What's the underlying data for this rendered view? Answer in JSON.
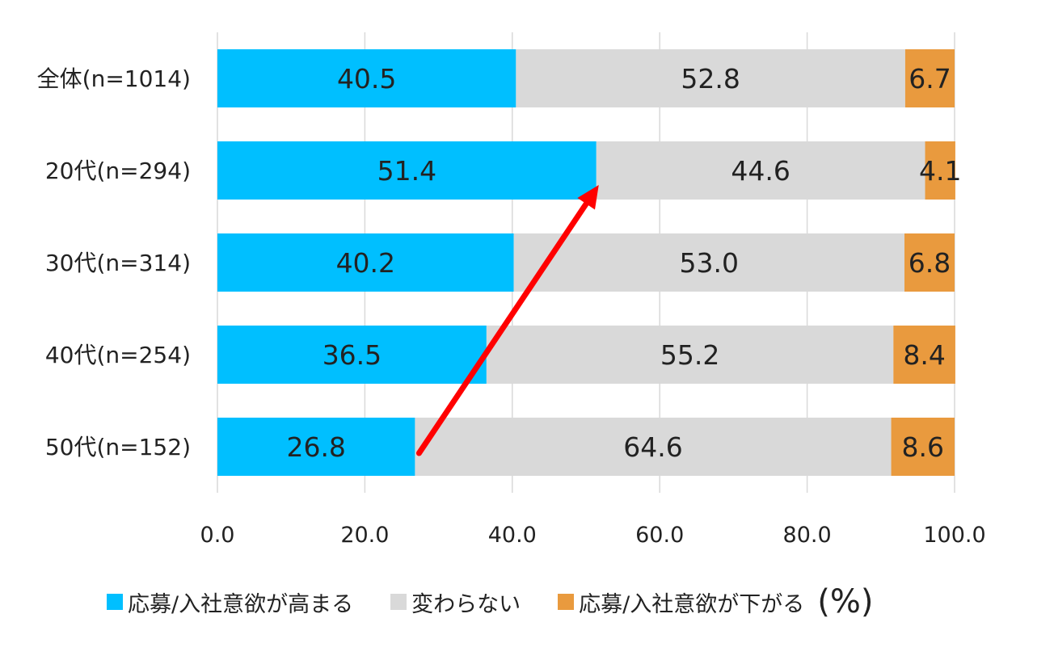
{
  "chart_data": {
    "type": "bar",
    "orientation": "horizontal",
    "stacked": true,
    "categories": [
      "全体(n=1014)",
      "20代(n=294)",
      "30代(n=314)",
      "40代(n=254)",
      "50代(n=152)"
    ],
    "series": [
      {
        "name": "応募/入社意欲が高まる",
        "color": "#00BFFF",
        "values": [
          40.5,
          51.4,
          40.2,
          36.5,
          26.8
        ]
      },
      {
        "name": "変わらない",
        "color": "#D9D9D9",
        "values": [
          52.8,
          44.6,
          53.0,
          55.2,
          64.6
        ]
      },
      {
        "name": "応募/入社意欲が下がる",
        "color": "#E99A3E",
        "values": [
          6.7,
          4.1,
          6.8,
          8.4,
          8.6
        ]
      }
    ],
    "x_ticks": [
      "0.0",
      "20.0",
      "40.0",
      "60.0",
      "80.0",
      "100.0"
    ],
    "xlim": [
      0,
      100
    ],
    "grid": true,
    "unit_label": "(%)",
    "legend_position": "bottom",
    "annotation": {
      "type": "arrow",
      "color": "#FF0000",
      "from": {
        "category": "50代(n=152)",
        "value": 26.8
      },
      "to": {
        "category": "20代(n=294)",
        "value": 51.4
      }
    }
  }
}
